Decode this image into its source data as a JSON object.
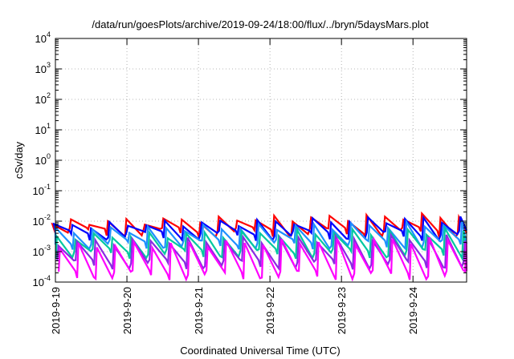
{
  "chart_data": {
    "type": "line",
    "title": "/data/run/goesPlots/archive/2019-09-24/18:00/flux/../bryn/5daysMars.plot",
    "xlabel": "Coordinated Universal Time (UTC)",
    "ylabel": "cSv/day",
    "yscale": "log",
    "ylim": [
      0.0001,
      10000
    ],
    "y_ticks": [
      {
        "exp": "-4",
        "value": 0.0001
      },
      {
        "exp": "-3",
        "value": 0.001
      },
      {
        "exp": "-2",
        "value": 0.01
      },
      {
        "exp": "-1",
        "value": 0.1
      },
      {
        "exp": "0",
        "value": 1
      },
      {
        "exp": "1",
        "value": 10
      },
      {
        "exp": "2",
        "value": 100
      },
      {
        "exp": "3",
        "value": 1000
      },
      {
        "exp": "4",
        "value": 10000
      }
    ],
    "y_tick_base": "10",
    "xlim": [
      "2019-09-19",
      "2019-09-24 18:00"
    ],
    "x_tick_labels": [
      "2019-9-19",
      "2019-9-20",
      "2019-9-21",
      "2019-9-22",
      "2019-9-23",
      "2019-9-24"
    ],
    "grid": true,
    "legend": "none",
    "sawtooth_period_hours": 6.2,
    "series": [
      {
        "color": "#ff0000",
        "peak_start": 0.009,
        "peak_end": 0.015,
        "trough": 0.0045
      },
      {
        "color": "#0000ff",
        "peak_start": 0.007,
        "peak_end": 0.012,
        "trough": 0.0035
      },
      {
        "color": "#1e90ff",
        "peak_start": 0.005,
        "peak_end": 0.008,
        "trough": 0.0018
      },
      {
        "color": "#00c8a0",
        "peak_start": 0.003,
        "peak_end": 0.005,
        "trough": 0.0009
      },
      {
        "color": "#8a2be2",
        "peak_start": 0.002,
        "peak_end": 0.003,
        "trough": 0.0004
      },
      {
        "color": "#ff00ff",
        "peak_start": 0.0015,
        "peak_end": 0.0025,
        "trough": 0.00018
      }
    ]
  }
}
